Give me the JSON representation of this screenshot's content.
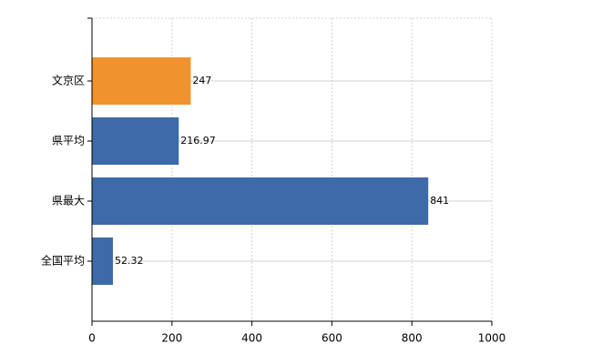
{
  "chart_data": {
    "type": "hbar",
    "categories": [
      "文京区",
      "県平均",
      "県最大",
      "全国平均"
    ],
    "values": [
      247,
      216.97,
      841,
      52.32
    ],
    "colors": [
      "#f0922e",
      "#3d6aa8",
      "#3d6aa8",
      "#3d6aa8"
    ],
    "xlim": [
      0,
      1000
    ],
    "xticks": [
      0,
      200,
      400,
      600,
      800,
      1000
    ],
    "grid": true
  }
}
